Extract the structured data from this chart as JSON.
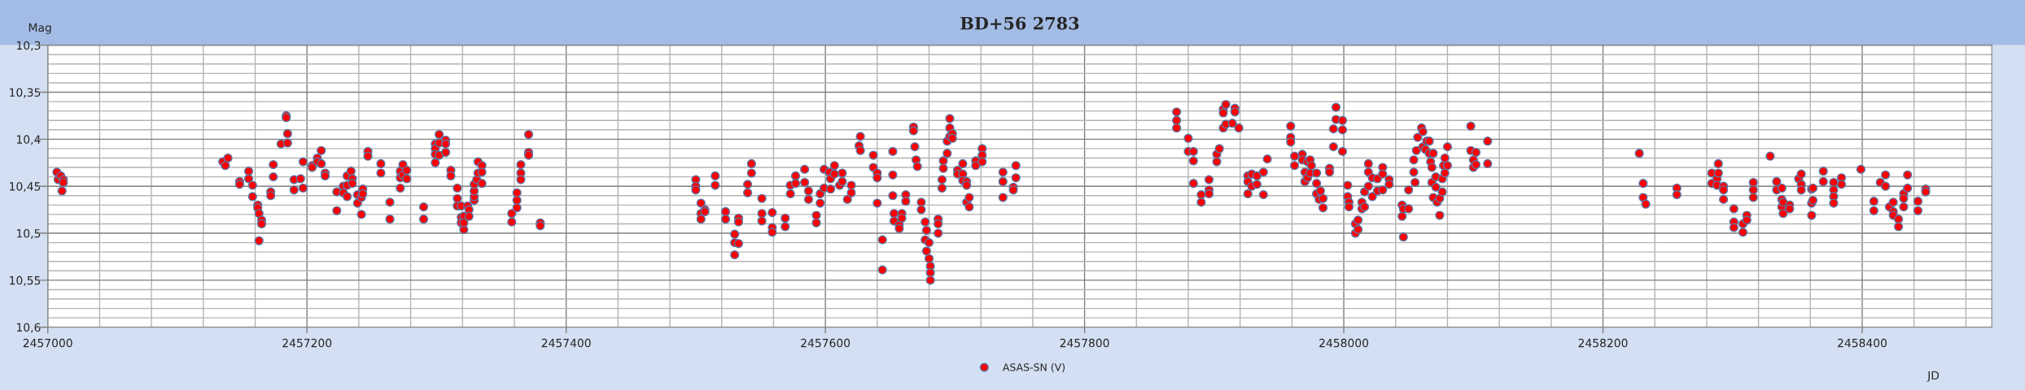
{
  "chart_data": {
    "type": "scatter",
    "title": "BD+56 2783",
    "xlabel": "JD",
    "ylabel": "Mag",
    "xlim": [
      2457000,
      2458500
    ],
    "ylim": [
      10.6,
      10.3
    ],
    "xticks": [
      2457000,
      {
        "value": 2457040,
        "label": null
      },
      {
        "value": 2457080,
        "label": null
      },
      {
        "value": 2457120,
        "label": null
      },
      {
        "value": 2457160,
        "label": null
      },
      2457200,
      {
        "value": 2457240,
        "label": null
      },
      {
        "value": 2457280,
        "label": null
      },
      {
        "value": 2457320,
        "label": null
      },
      {
        "value": 2457360,
        "label": null
      },
      2457400,
      {
        "value": 2457440,
        "label": null
      },
      {
        "value": 2457480,
        "label": null
      },
      {
        "value": 2457520,
        "label": null
      },
      {
        "value": 2457560,
        "label": null
      },
      2457600,
      {
        "value": 2457640,
        "label": null
      },
      {
        "value": 2457680,
        "label": null
      },
      {
        "value": 2457720,
        "label": null
      },
      {
        "value": 2457760,
        "label": null
      },
      2457800,
      {
        "value": 2457840,
        "label": null
      },
      {
        "value": 2457880,
        "label": null
      },
      {
        "value": 2457920,
        "label": null
      },
      {
        "value": 2457960,
        "label": null
      },
      2458000,
      {
        "value": 2458040,
        "label": null
      },
      {
        "value": 2458080,
        "label": null
      },
      {
        "value": 2458120,
        "label": null
      },
      {
        "value": 2458160,
        "label": null
      },
      2458200,
      {
        "value": 2458240,
        "label": null
      },
      {
        "value": 2458280,
        "label": null
      },
      {
        "value": 2458320,
        "label": null
      },
      {
        "value": 2458360,
        "label": null
      },
      2458400,
      {
        "value": 2458440,
        "label": null
      },
      {
        "value": 2458480,
        "label": null
      }
    ],
    "yticks": [
      {
        "value": 10.3,
        "label": "10,3"
      },
      {
        "value": 10.31,
        "label": null
      },
      {
        "value": 10.32,
        "label": null
      },
      {
        "value": 10.33,
        "label": null
      },
      {
        "value": 10.34,
        "label": null
      },
      {
        "value": 10.35,
        "label": "10,35"
      },
      {
        "value": 10.36,
        "label": null
      },
      {
        "value": 10.37,
        "label": null
      },
      {
        "value": 10.38,
        "label": null
      },
      {
        "value": 10.39,
        "label": null
      },
      {
        "value": 10.4,
        "label": "10,4"
      },
      {
        "value": 10.41,
        "label": null
      },
      {
        "value": 10.42,
        "label": null
      },
      {
        "value": 10.43,
        "label": null
      },
      {
        "value": 10.44,
        "label": null
      },
      {
        "value": 10.45,
        "label": "10,45"
      },
      {
        "value": 10.46,
        "label": null
      },
      {
        "value": 10.47,
        "label": null
      },
      {
        "value": 10.48,
        "label": null
      },
      {
        "value": 10.49,
        "label": null
      },
      {
        "value": 10.5,
        "label": "10,5"
      },
      {
        "value": 10.51,
        "label": null
      },
      {
        "value": 10.52,
        "label": null
      },
      {
        "value": 10.53,
        "label": null
      },
      {
        "value": 10.54,
        "label": null
      },
      {
        "value": 10.55,
        "label": "10,55"
      },
      {
        "value": 10.56,
        "label": null
      },
      {
        "value": 10.57,
        "label": null
      },
      {
        "value": 10.58,
        "label": null
      },
      {
        "value": 10.59,
        "label": null
      },
      {
        "value": 10.6,
        "label": "10,6"
      }
    ],
    "grid": true,
    "legend": "bottom",
    "marker": "circle",
    "series": [
      {
        "name": "ASAS-SN (V)",
        "color": "#ff0000",
        "x": [
          2457007,
          2457008,
          2457010,
          2457012,
          2457012,
          2457011,
          2457135,
          2457137,
          2457139,
          2457148,
          2457148,
          2457155,
          2457155,
          2457158,
          2457158,
          2457162,
          2457162,
          2457163,
          2457165,
          2457165,
          2457163,
          2457172,
          2457172,
          2457174,
          2457174,
          2457180,
          2457184,
          2457184,
          2457185,
          2457185,
          2457190,
          2457190,
          2457195,
          2457197,
          2457197,
          2457204,
          2457204,
          2457208,
          2457208,
          2457211,
          2457211,
          2457214,
          2457214,
          2457223,
          2457223,
          2457228,
          2457228,
          2457231,
          2457231,
          2457231,
          2457234,
          2457235,
          2457235,
          2457239,
          2457239,
          2457242,
          2457242,
          2457243,
          2457243,
          2457247,
          2457247,
          2457257,
          2457257,
          2457264,
          2457264,
          2457272,
          2457272,
          2457272,
          2457274,
          2457274,
          2457277,
          2457277,
          2457290,
          2457290,
          2457299,
          2457299,
          2457299,
          2457299,
          2457302,
          2457302,
          2457302,
          2457307,
          2457307,
          2457307,
          2457311,
          2457311,
          2457316,
          2457316,
          2457316,
          2457319,
          2457319,
          2457319,
          2457321,
          2457321,
          2457321,
          2457324,
          2457325,
          2457325,
          2457329,
          2457329,
          2457329,
          2457329,
          2457331,
          2457332,
          2457332,
          2457335,
          2457335,
          2457335,
          2457358,
          2457358,
          2457362,
          2457362,
          2457362,
          2457365,
          2457365,
          2457365,
          2457371,
          2457371,
          2457371,
          2457380,
          2457380,
          2457500,
          2457500,
          2457500,
          2457504,
          2457504,
          2457504,
          2457507,
          2457507,
          2457515,
          2457515,
          2457523,
          2457523,
          2457530,
          2457530,
          2457530,
          2457533,
          2457533,
          2457533,
          2457540,
          2457540,
          2457543,
          2457543,
          2457551,
          2457551,
          2457551,
          2457559,
          2457559,
          2457559,
          2457569,
          2457569,
          2457573,
          2457573,
          2457577,
          2457577,
          2457584,
          2457584,
          2457587,
          2457587,
          2457593,
          2457593,
          2457596,
          2457596,
          2457599,
          2457599,
          2457603,
          2457604,
          2457604,
          2457607,
          2457607,
          2457611,
          2457613,
          2457613,
          2457617,
          2457620,
          2457620,
          2457626,
          2457627,
          2457627,
          2457637,
          2457637,
          2457640,
          2457640,
          2457640,
          2457644,
          2457644,
          2457652,
          2457652,
          2457652,
          2457653,
          2457653,
          2457657,
          2457657,
          2457659,
          2457659,
          2457662,
          2457662,
          2457668,
          2457668,
          2457669,
          2457670,
          2457671,
          2457674,
          2457674,
          2457677,
          2457678,
          2457677,
          2457678,
          2457680,
          2457680,
          2457681,
          2457681,
          2457681,
          2457687,
          2457687,
          2457687,
          2457690,
          2457690,
          2457691,
          2457691,
          2457694,
          2457694,
          2457696,
          2457696,
          2457696,
          2457698,
          2457698,
          2457702,
          2457702,
          2457706,
          2457706,
          2457706,
          2457709,
          2457709,
          2457709,
          2457711,
          2457711,
          2457716,
          2457716,
          2457721,
          2457721,
          2457721,
          2457737,
          2457737,
          2457737,
          2457745,
          2457745,
          2457747,
          2457747,
          2457871,
          2457871,
          2457871,
          2457880,
          2457880,
          2457884,
          2457884,
          2457884,
          2457890,
          2457890,
          2457896,
          2457896,
          2457896,
          2457902,
          2457902,
          2457904,
          2457907,
          2457907,
          2457909,
          2457907,
          2457909,
          2457914,
          2457916,
          2457916,
          2457919,
          2457926,
          2457926,
          2457926,
          2457929,
          2457929,
          2457933,
          2457933,
          2457938,
          2457938,
          2457941,
          2457959,
          2457959,
          2457959,
          2457962,
          2457962,
          2457968,
          2457968,
          2457970,
          2457970,
          2457972,
          2457972,
          2457974,
          2457974,
          2457975,
          2457979,
          2457979,
          2457979,
          2457981,
          2457982,
          2457984,
          2457984,
          2457989,
          2457989,
          2457992,
          2457992,
          2457994,
          2457994,
          2457999,
          2457999,
          2457999,
          2458003,
          2458003,
          2458004,
          2458004,
          2458009,
          2458009,
          2458011,
          2458011,
          2458014,
          2458014,
          2458016,
          2458016,
          2458019,
          2458019,
          2458019,
          2458022,
          2458022,
          2458026,
          2458026,
          2458030,
          2458030,
          2458030,
          2458035,
          2458035,
          2458045,
          2458045,
          2458046,
          2458046,
          2458050,
          2458050,
          2458054,
          2458054,
          2458055,
          2458056,
          2458057,
          2458060,
          2458061,
          2458061,
          2458063,
          2458064,
          2458066,
          2458066,
          2458067,
          2458068,
          2458068,
          2458069,
          2458069,
          2458071,
          2458071,
          2458072,
          2458074,
          2458074,
          2458076,
          2458076,
          2458077,
          2458078,
          2458078,
          2458080,
          2458080,
          2458098,
          2458098,
          2458100,
          2458100,
          2458102,
          2458102,
          2458111,
          2458111,
          2458228,
          2458231,
          2458231,
          2458233,
          2458257,
          2458257,
          2458284,
          2458284,
          2458288,
          2458288,
          2458289,
          2458289,
          2458293,
          2458293,
          2458293,
          2458301,
          2458301,
          2458301,
          2458308,
          2458308,
          2458311,
          2458311,
          2458316,
          2458316,
          2458316,
          2458329,
          2458334,
          2458334,
          2458338,
          2458338,
          2458338,
          2458339,
          2458339,
          2458344,
          2458344,
          2458351,
          2458353,
          2458353,
          2458353,
          2458361,
          2458362,
          2458361,
          2458362,
          2458361,
          2458370,
          2458370,
          2458378,
          2458378,
          2458378,
          2458378,
          2458384,
          2458384,
          2458399,
          2458409,
          2458409,
          2458414,
          2458418,
          2458418,
          2458421,
          2458424,
          2458424,
          2458424,
          2458428,
          2458428,
          2458432,
          2458432,
          2458432,
          2458435,
          2458435,
          2458443,
          2458443,
          2458449,
          2458449
        ],
        "values": [
          10.435,
          10.443,
          10.439,
          10.443,
          10.446,
          10.455,
          10.424,
          10.428,
          10.42,
          10.445,
          10.448,
          10.434,
          10.442,
          10.449,
          10.461,
          10.47,
          10.473,
          10.479,
          10.486,
          10.49,
          10.508,
          10.456,
          10.46,
          10.427,
          10.44,
          10.405,
          10.375,
          10.377,
          10.394,
          10.404,
          10.443,
          10.454,
          10.442,
          10.424,
          10.452,
          10.428,
          10.43,
          10.42,
          10.424,
          10.412,
          10.426,
          10.436,
          10.439,
          10.456,
          10.476,
          10.45,
          10.457,
          10.439,
          10.449,
          10.461,
          10.434,
          10.442,
          10.447,
          10.459,
          10.468,
          10.462,
          10.48,
          10.453,
          10.458,
          10.413,
          10.418,
          10.426,
          10.436,
          10.467,
          10.485,
          10.434,
          10.441,
          10.452,
          10.427,
          10.438,
          10.433,
          10.442,
          10.472,
          10.485,
          10.405,
          10.41,
          10.416,
          10.425,
          10.395,
          10.404,
          10.417,
          10.401,
          10.405,
          10.414,
          10.433,
          10.439,
          10.452,
          10.463,
          10.471,
          10.471,
          10.483,
          10.489,
          10.482,
          10.496,
          10.489,
          10.471,
          10.475,
          10.482,
          10.465,
          10.461,
          10.455,
          10.448,
          10.443,
          10.436,
          10.424,
          10.428,
          10.435,
          10.447,
          10.479,
          10.488,
          10.457,
          10.465,
          10.473,
          10.427,
          10.436,
          10.443,
          10.395,
          10.414,
          10.417,
          10.489,
          10.492,
          10.443,
          10.45,
          10.454,
          10.468,
          10.479,
          10.485,
          10.475,
          10.477,
          10.439,
          10.449,
          10.477,
          10.485,
          10.501,
          10.51,
          10.523,
          10.484,
          10.488,
          10.511,
          10.448,
          10.457,
          10.426,
          10.436,
          10.463,
          10.479,
          10.487,
          10.478,
          10.494,
          10.499,
          10.484,
          10.493,
          10.449,
          10.458,
          10.439,
          10.447,
          10.432,
          10.446,
          10.455,
          10.464,
          10.481,
          10.489,
          10.458,
          10.468,
          10.432,
          10.452,
          10.435,
          10.453,
          10.442,
          10.428,
          10.437,
          10.449,
          10.436,
          10.445,
          10.464,
          10.449,
          10.457,
          10.407,
          10.397,
          10.412,
          10.417,
          10.43,
          10.436,
          10.441,
          10.468,
          10.507,
          10.539,
          10.413,
          10.438,
          10.46,
          10.479,
          10.487,
          10.491,
          10.495,
          10.479,
          10.484,
          10.459,
          10.466,
          10.387,
          10.391,
          10.408,
          10.422,
          10.429,
          10.467,
          10.475,
          10.488,
          10.497,
          10.507,
          10.519,
          10.51,
          10.527,
          10.535,
          10.542,
          10.55,
          10.485,
          10.49,
          10.5,
          10.443,
          10.452,
          10.423,
          10.431,
          10.415,
          10.402,
          10.378,
          10.388,
          10.397,
          10.394,
          10.399,
          10.433,
          10.437,
          10.426,
          10.437,
          10.444,
          10.445,
          10.449,
          10.467,
          10.462,
          10.472,
          10.423,
          10.428,
          10.41,
          10.417,
          10.424,
          10.435,
          10.445,
          10.462,
          10.451,
          10.454,
          10.428,
          10.441,
          10.371,
          10.38,
          10.388,
          10.399,
          10.413,
          10.413,
          10.423,
          10.447,
          10.459,
          10.467,
          10.443,
          10.454,
          10.458,
          10.416,
          10.424,
          10.41,
          10.368,
          10.372,
          10.363,
          10.388,
          10.384,
          10.383,
          10.367,
          10.371,
          10.388,
          10.439,
          10.445,
          10.458,
          10.437,
          10.45,
          10.439,
          10.448,
          10.435,
          10.459,
          10.421,
          10.386,
          10.398,
          10.403,
          10.418,
          10.428,
          10.416,
          10.422,
          10.435,
          10.445,
          10.424,
          10.441,
          10.422,
          10.436,
          10.428,
          10.436,
          10.447,
          10.458,
          10.464,
          10.455,
          10.463,
          10.473,
          10.431,
          10.435,
          10.389,
          10.408,
          10.366,
          10.379,
          10.38,
          10.39,
          10.413,
          10.449,
          10.461,
          10.467,
          10.472,
          10.49,
          10.5,
          10.486,
          10.496,
          10.467,
          10.474,
          10.456,
          10.472,
          10.426,
          10.435,
          10.45,
          10.441,
          10.461,
          10.442,
          10.455,
          10.43,
          10.437,
          10.454,
          10.443,
          10.448,
          10.47,
          10.482,
          10.504,
          10.474,
          10.454,
          10.474,
          10.435,
          10.422,
          10.446,
          10.412,
          10.398,
          10.388,
          10.392,
          10.408,
          10.411,
          10.402,
          10.402,
          10.415,
          10.424,
          10.43,
          10.446,
          10.415,
          10.462,
          10.44,
          10.451,
          10.467,
          10.463,
          10.481,
          10.442,
          10.456,
          10.428,
          10.42,
          10.436,
          10.408,
          10.428,
          10.386,
          10.412,
          10.422,
          10.43,
          10.414,
          10.427,
          10.402,
          10.426,
          10.415,
          10.447,
          10.462,
          10.469,
          10.452,
          10.459,
          10.436,
          10.447,
          10.442,
          10.449,
          10.426,
          10.436,
          10.45,
          10.454,
          10.464,
          10.474,
          10.488,
          10.494,
          10.49,
          10.499,
          10.481,
          10.486,
          10.446,
          10.454,
          10.462,
          10.418,
          10.445,
          10.454,
          10.452,
          10.464,
          10.472,
          10.467,
          10.479,
          10.47,
          10.474,
          10.442,
          10.437,
          10.448,
          10.454,
          10.453,
          10.452,
          10.468,
          10.465,
          10.481,
          10.434,
          10.445,
          10.446,
          10.454,
          10.461,
          10.468,
          10.441,
          10.448,
          10.432,
          10.466,
          10.476,
          10.446,
          10.438,
          10.45,
          10.472,
          10.467,
          10.477,
          10.481,
          10.485,
          10.493,
          10.458,
          10.463,
          10.472,
          10.438,
          10.452,
          10.466,
          10.476,
          10.453,
          10.456
        ]
      }
    ]
  }
}
